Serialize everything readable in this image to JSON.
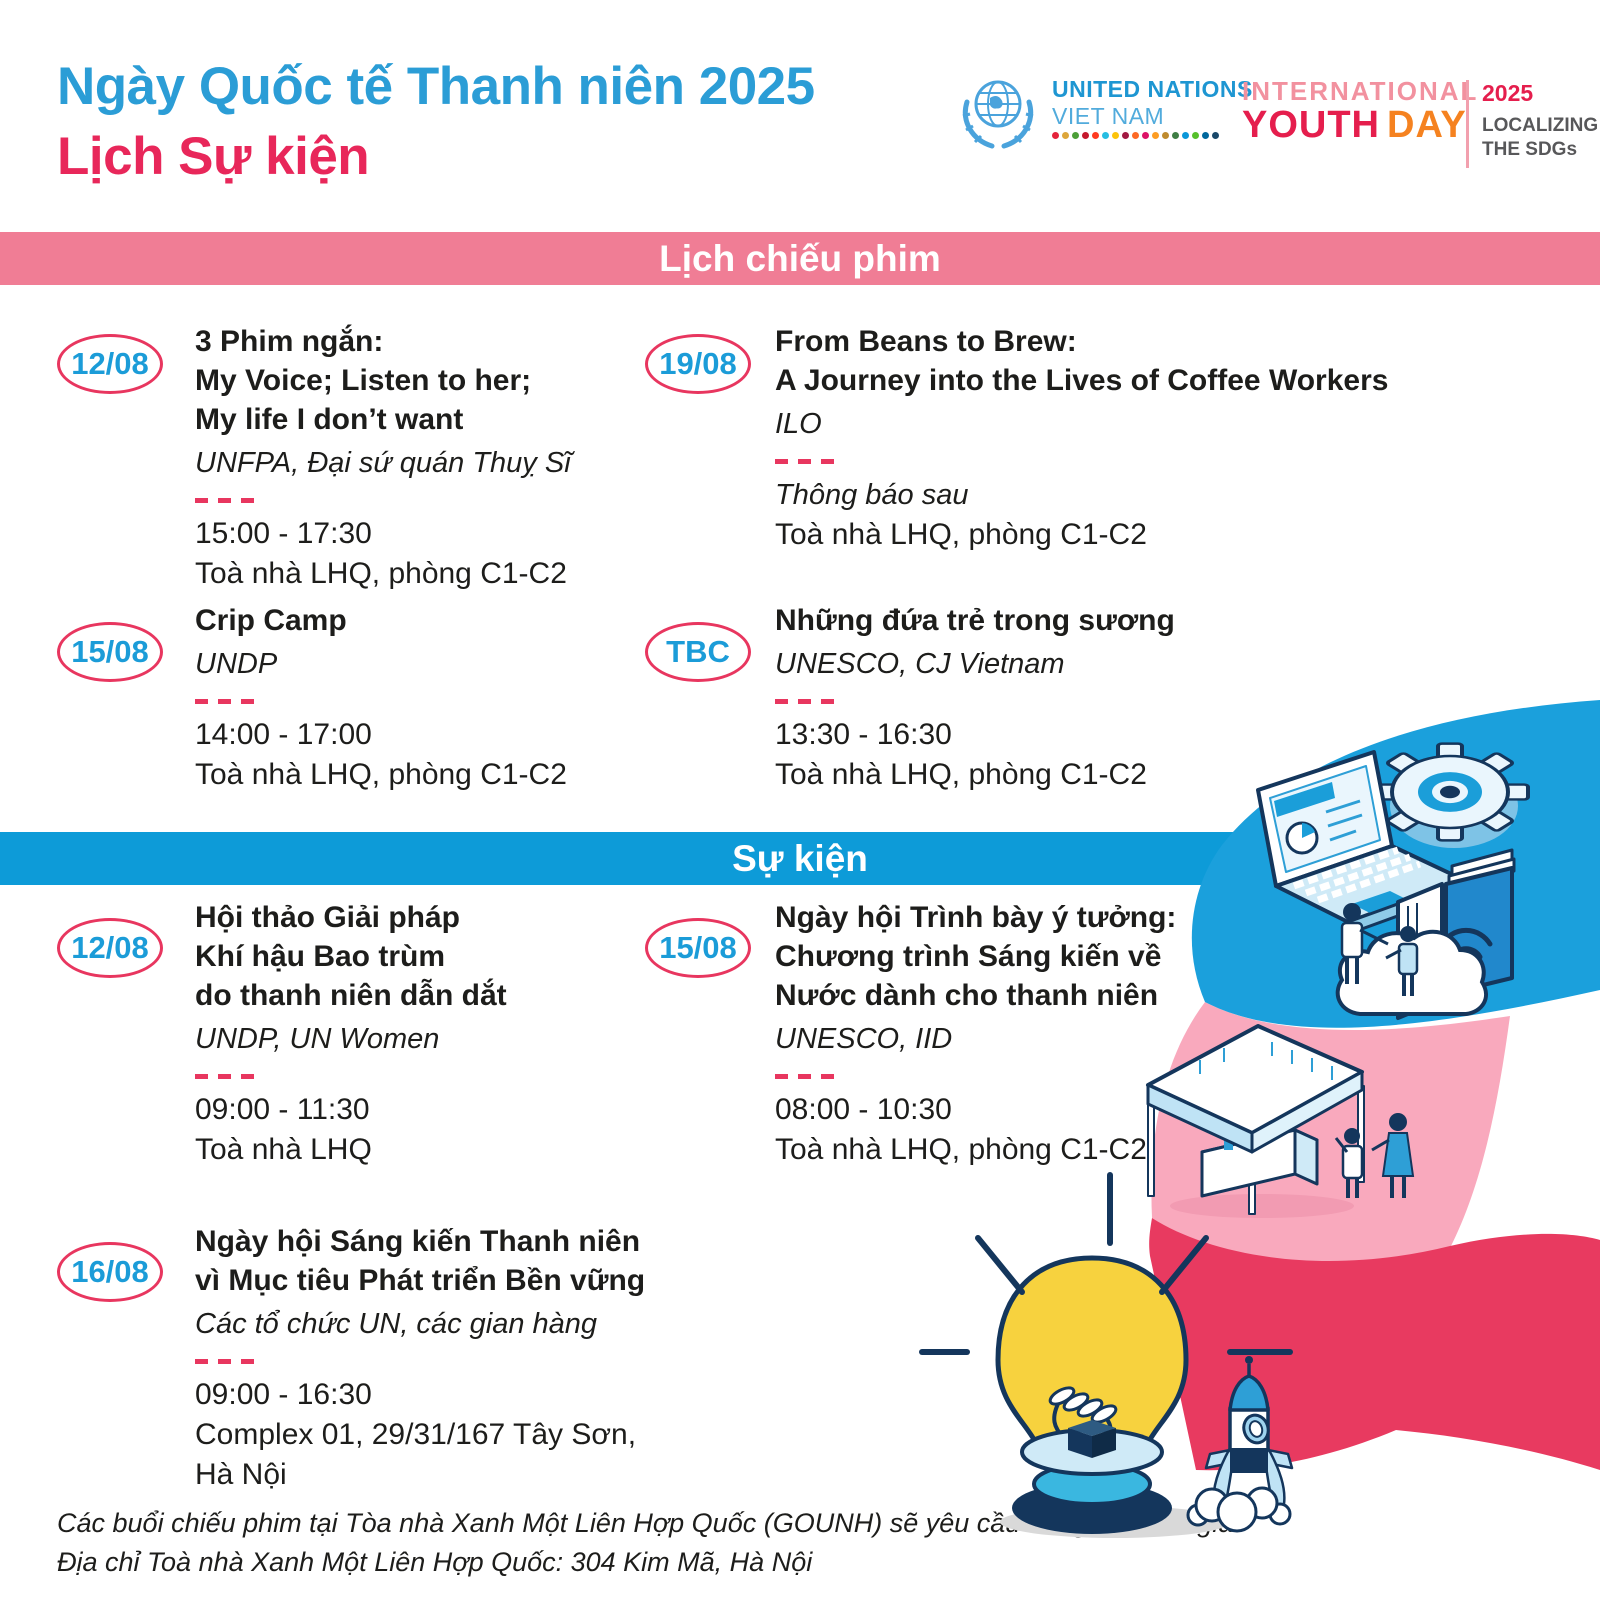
{
  "page": {
    "title_line1": "Ngày Quốc tế Thanh niên 2025",
    "title_line2": "Lịch Sự kiện"
  },
  "logos": {
    "un": {
      "name": "UNITED NATIONS",
      "country": "VIET NAM",
      "sdg_palette": [
        "#e5243b",
        "#dda63a",
        "#4c9f38",
        "#c5192d",
        "#ff3a21",
        "#26bde2",
        "#fcc30b",
        "#a21942",
        "#fd6925",
        "#dd1367",
        "#fd9d24",
        "#bf8b2e",
        "#3f7e44",
        "#0a97d9",
        "#56c02b",
        "#00689d",
        "#19486a"
      ]
    },
    "iyd": {
      "line1": "INTERNATIONAL",
      "word_youth": "YOUTH",
      "word_day": "DAY",
      "year": "2025",
      "tag_line1": "LOCALIZING",
      "tag_line2": "THE SDGs"
    }
  },
  "film_section": {
    "banner": "Lịch chiếu phim",
    "entries": [
      {
        "date": "12/08",
        "title1": "3 Phim ngắn:",
        "title2": "My Voice; Listen to her;",
        "title3": "My life I don’t want",
        "org": "UNFPA, Đại sứ quán Thuỵ Sĩ",
        "time": "15:00 - 17:30",
        "venue": "Toà nhà LHQ, phòng C1-C2"
      },
      {
        "date": "19/08",
        "title1": "From Beans to Brew:",
        "title2": "A Journey into the Lives of Coffee Workers",
        "org": "ILO",
        "note": "Thông báo sau",
        "venue": "Toà nhà LHQ, phòng C1-C2"
      },
      {
        "date": "15/08",
        "title1": "Crip Camp",
        "org": "UNDP",
        "time": "14:00 - 17:00",
        "venue": "Toà nhà LHQ, phòng C1-C2"
      },
      {
        "date": "TBC",
        "title1": "Những đứa trẻ trong sương",
        "org": "UNESCO, CJ Vietnam",
        "time": "13:30 - 16:30",
        "venue": "Toà nhà LHQ, phòng C1-C2"
      }
    ]
  },
  "event_section": {
    "banner": "Sự kiện",
    "entries": [
      {
        "date": "12/08",
        "title1": "Hội thảo Giải pháp",
        "title2": "Khí hậu Bao trùm",
        "title3": "do thanh niên dẫn dắt",
        "org": "UNDP, UN Women",
        "time": "09:00 - 11:30",
        "venue": "Toà nhà LHQ"
      },
      {
        "date": "15/08",
        "title1": "Ngày hội Trình bày ý tưởng:",
        "title2": "Chương trình Sáng kiến về",
        "title3": "Nước dành cho thanh niên",
        "org": "UNESCO, IID",
        "time": "08:00 - 10:30",
        "venue": "Toà nhà LHQ, phòng C1-C2"
      },
      {
        "date": "16/08",
        "title1": "Ngày hội Sáng kiến Thanh niên",
        "title2": "vì Mục tiêu Phát triển Bền vững",
        "org": "Các tổ chức UN, các gian hàng",
        "time": "09:00 - 16:30",
        "venue": "Complex 01, 29/31/167 Tây Sơn,",
        "venue2": "Hà Nội"
      }
    ]
  },
  "footer": {
    "line1": "Các buổi chiếu phim tại Tòa nhà Xanh Một Liên Hợp Quốc (GOUNH) sẽ yêu cầu đăng ký tham gia",
    "line2": "Địa chỉ Toà nhà Xanh Một Liên Hợp Quốc: 304 Kim Mã, Hà Nội"
  },
  "colors": {
    "title_blue": "#2b9dd6",
    "title_pink": "#e8275a",
    "banner_pink": "#f07d95",
    "banner_blue": "#0d9bd8",
    "badge_blue": "#1b9cd8",
    "accent_red": "#e8365f",
    "text": "#1d1d1b",
    "ribbon_blue": "#1ba0dc",
    "ribbon_pink": "#f9a9bd",
    "ribbon_red": "#e83a60",
    "bulb_yellow": "#f7d23e",
    "navy": "#14365c"
  }
}
